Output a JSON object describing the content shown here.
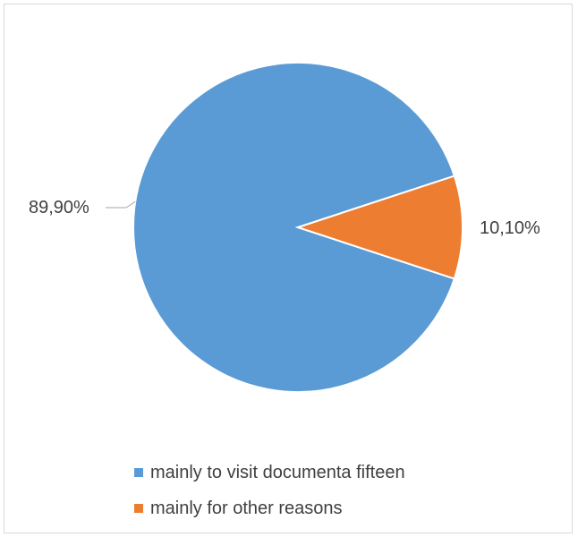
{
  "chart_data": {
    "type": "pie",
    "slices": [
      {
        "name": "mainly to visit documenta fifteen",
        "value": 89.9,
        "label": "89,90%",
        "color": "#5b9bd5"
      },
      {
        "name": "mainly for other reasons",
        "value": 10.1,
        "label": "10,10%",
        "color": "#ed7d31"
      }
    ],
    "legend_position": "bottom"
  }
}
